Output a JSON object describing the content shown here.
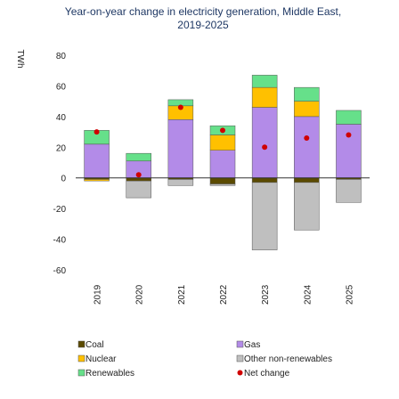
{
  "chart_data": {
    "type": "bar",
    "title_line1": "Year-on-year change in electricity generation, Middle East,",
    "title_line2": "2019-2025",
    "ylabel": "TWh",
    "ylim": [
      -60,
      80
    ],
    "yticks": [
      80,
      60,
      40,
      20,
      0,
      -20,
      -40,
      -60
    ],
    "categories": [
      "2019",
      "2020",
      "2021",
      "2022",
      "2023",
      "2024",
      "2025"
    ],
    "series": [
      {
        "name": "Coal",
        "color": "#5b4a00",
        "values": [
          -1,
          -2,
          -1,
          -4,
          -3,
          -3,
          -1
        ]
      },
      {
        "name": "Nuclear",
        "color": "#ffc000",
        "values": [
          -1,
          0,
          9,
          10,
          13,
          10,
          0
        ]
      },
      {
        "name": "Renewables",
        "color": "#66e08a",
        "values": [
          9,
          5,
          4,
          6,
          8,
          9,
          9
        ]
      },
      {
        "name": "Gas",
        "color": "#b38be8",
        "values": [
          22,
          11,
          38,
          18,
          46,
          40,
          35
        ]
      },
      {
        "name": "Other non-renewables",
        "color": "#bfbfbf",
        "values": [
          0,
          -11,
          -4,
          -1,
          -44,
          -31,
          -15
        ]
      }
    ],
    "net_change": {
      "name": "Net change",
      "color": "#d00000",
      "values": [
        30,
        2,
        46,
        31,
        20,
        26,
        28
      ]
    },
    "stack_order_positive": [
      "Coal",
      "Gas",
      "Nuclear",
      "Renewables"
    ],
    "stack_order_negative": [
      "Coal",
      "Nuclear",
      "Other non-renewables"
    ],
    "grid": false,
    "legend": {
      "placement": "bottom",
      "items": [
        {
          "label": "Coal",
          "color": "#5b4a00"
        },
        {
          "label": "Gas",
          "color": "#b38be8"
        },
        {
          "label": "Nuclear",
          "color": "#ffc000"
        },
        {
          "label": "Other non-renewables",
          "color": "#bfbfbf"
        },
        {
          "label": "Renewables",
          "color": "#66e08a"
        },
        {
          "label": "Net change",
          "color": "#d00000"
        }
      ]
    },
    "colors": {
      "title": "#1f3864",
      "axis": "#404040"
    }
  }
}
